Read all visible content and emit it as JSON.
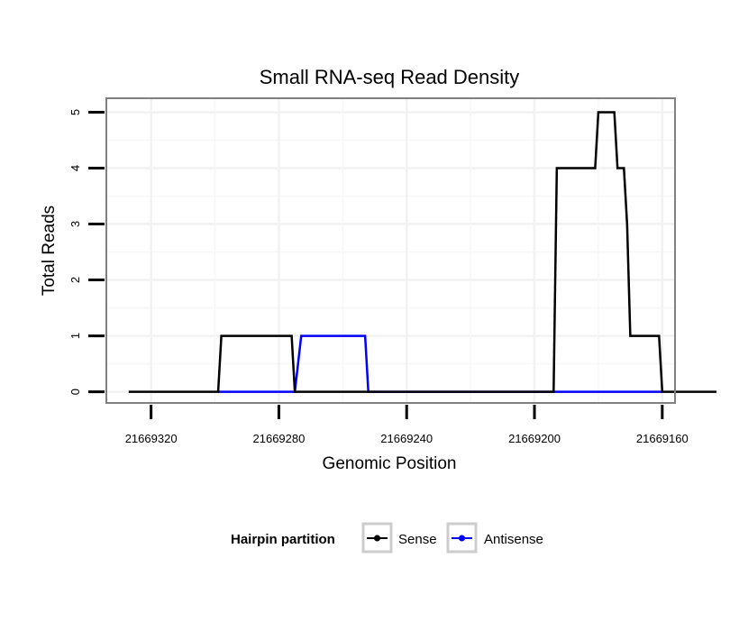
{
  "chart_data": {
    "type": "line",
    "title": "Small RNA-seq Read Density",
    "xlabel": "Genomic Position",
    "ylabel": "Total Reads",
    "xlim": [
      21669334,
      21669156
    ],
    "ylim": [
      -0.2,
      5.25
    ],
    "x_reversed": true,
    "xticks": [
      21669320,
      21669280,
      21669240,
      21669200,
      21669160
    ],
    "xtick_labels": [
      "21669320",
      "21669280",
      "21669240",
      "21669200",
      "21669160"
    ],
    "yticks": [
      0,
      1,
      2,
      3,
      4,
      5
    ],
    "ytick_labels": [
      "0",
      "1",
      "2",
      "3",
      "4",
      "5"
    ],
    "grid": true,
    "legend": {
      "title": "Hairpin partition",
      "position": "bottom"
    },
    "series": [
      {
        "name": "Sense",
        "color": "#000000",
        "points": [
          [
            21669327,
            0
          ],
          [
            21669299,
            0
          ],
          [
            21669298,
            1
          ],
          [
            21669276,
            1
          ],
          [
            21669275,
            0
          ],
          [
            21669194,
            0
          ],
          [
            21669193,
            4
          ],
          [
            21669181,
            4
          ],
          [
            21669180,
            5
          ],
          [
            21669175,
            5
          ],
          [
            21669174,
            4
          ],
          [
            21669172,
            4
          ],
          [
            21669171,
            3
          ],
          [
            21669170,
            1
          ],
          [
            21669161,
            1
          ],
          [
            21669160,
            0
          ],
          [
            21669143,
            0
          ]
        ]
      },
      {
        "name": "Antisense",
        "color": "#0000ff",
        "points": [
          [
            21669299,
            0
          ],
          [
            21669275,
            0
          ],
          [
            21669273,
            1
          ],
          [
            21669253,
            1
          ],
          [
            21669252,
            0
          ],
          [
            21669160,
            0
          ]
        ]
      }
    ]
  }
}
